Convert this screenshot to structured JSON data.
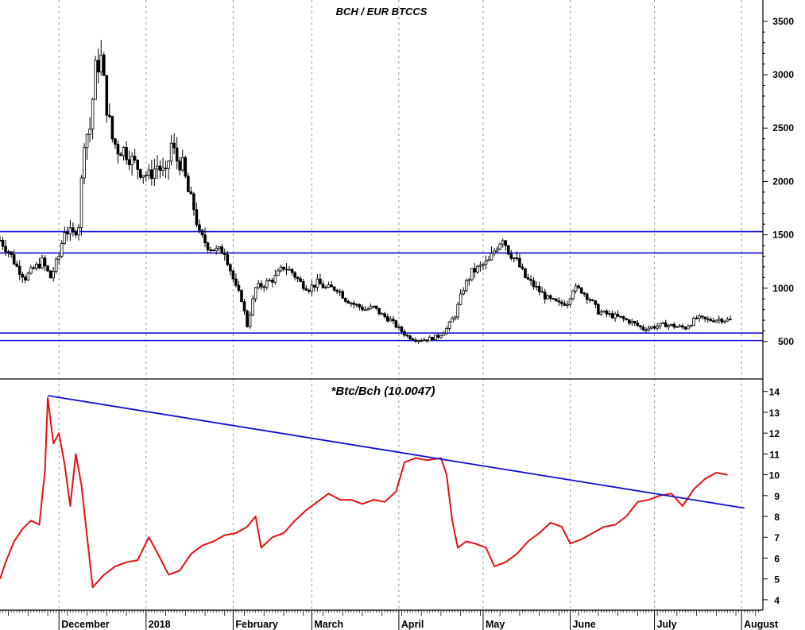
{
  "chart_data": [
    {
      "type": "candlestick",
      "title": "BCH / EUR BTCCS",
      "ylim": [
        150,
        3700
      ],
      "y_ticks": [
        500,
        1000,
        1500,
        2000,
        2500,
        3000,
        3500
      ],
      "x_start": "2017-11-10",
      "x_end": "2018-07-28",
      "x_labels": [
        {
          "date": "2017-12-01",
          "label": "December"
        },
        {
          "date": "2018-01-01",
          "label": "2018"
        },
        {
          "date": "2018-02-01",
          "label": "February"
        },
        {
          "date": "2018-03-01",
          "label": "March"
        },
        {
          "date": "2018-04-01",
          "label": "April"
        },
        {
          "date": "2018-05-01",
          "label": "May"
        },
        {
          "date": "2018-06-01",
          "label": "June"
        },
        {
          "date": "2018-07-01",
          "label": "July"
        },
        {
          "date": "2018-08-01",
          "label": "August"
        }
      ],
      "horizontal_lines": [
        1530,
        1330,
        580,
        510
      ],
      "close_path": [
        [
          "2017-11-10",
          1450
        ],
        [
          "2017-11-13",
          1350
        ],
        [
          "2017-11-16",
          1200
        ],
        [
          "2017-11-19",
          1100
        ],
        [
          "2017-11-22",
          1180
        ],
        [
          "2017-11-25",
          1250
        ],
        [
          "2017-11-28",
          1100
        ],
        [
          "2017-12-01",
          1300
        ],
        [
          "2017-12-03",
          1550
        ],
        [
          "2017-12-06",
          1500
        ],
        [
          "2017-12-08",
          1600
        ],
        [
          "2017-12-10",
          2400
        ],
        [
          "2017-12-12",
          2500
        ],
        [
          "2017-12-14",
          3050
        ],
        [
          "2017-12-16",
          3150
        ],
        [
          "2017-12-18",
          2700
        ],
        [
          "2017-12-20",
          2400
        ],
        [
          "2017-12-22",
          2300
        ],
        [
          "2017-12-24",
          2300
        ],
        [
          "2017-12-27",
          2200
        ],
        [
          "2017-12-30",
          2100
        ],
        [
          "2018-01-02",
          2050
        ],
        [
          "2018-01-05",
          2150
        ],
        [
          "2018-01-08",
          2050
        ],
        [
          "2018-01-10",
          2350
        ],
        [
          "2018-01-12",
          2200
        ],
        [
          "2018-01-14",
          2150
        ],
        [
          "2018-01-16",
          1900
        ],
        [
          "2018-01-18",
          1750
        ],
        [
          "2018-01-20",
          1500
        ],
        [
          "2018-01-23",
          1400
        ],
        [
          "2018-01-26",
          1350
        ],
        [
          "2018-01-29",
          1350
        ],
        [
          "2018-02-02",
          1000
        ],
        [
          "2018-02-04",
          900
        ],
        [
          "2018-02-06",
          650
        ],
        [
          "2018-02-09",
          1000
        ],
        [
          "2018-02-13",
          1050
        ],
        [
          "2018-02-16",
          1100
        ],
        [
          "2018-02-19",
          1200
        ],
        [
          "2018-02-22",
          1150
        ],
        [
          "2018-02-25",
          1050
        ],
        [
          "2018-02-28",
          1000
        ],
        [
          "2018-03-03",
          1050
        ],
        [
          "2018-03-06",
          1000
        ],
        [
          "2018-03-10",
          1000
        ],
        [
          "2018-03-13",
          900
        ],
        [
          "2018-03-16",
          850
        ],
        [
          "2018-03-20",
          800
        ],
        [
          "2018-03-23",
          820
        ],
        [
          "2018-03-26",
          750
        ],
        [
          "2018-03-29",
          700
        ],
        [
          "2018-04-01",
          620
        ],
        [
          "2018-04-04",
          550
        ],
        [
          "2018-04-07",
          520
        ],
        [
          "2018-04-11",
          520
        ],
        [
          "2018-04-15",
          550
        ],
        [
          "2018-04-18",
          620
        ],
        [
          "2018-04-21",
          750
        ],
        [
          "2018-04-24",
          1000
        ],
        [
          "2018-04-27",
          1150
        ],
        [
          "2018-04-30",
          1200
        ],
        [
          "2018-05-03",
          1250
        ],
        [
          "2018-05-06",
          1400
        ],
        [
          "2018-05-08",
          1480
        ],
        [
          "2018-05-10",
          1350
        ],
        [
          "2018-05-13",
          1250
        ],
        [
          "2018-05-16",
          1100
        ],
        [
          "2018-05-20",
          1000
        ],
        [
          "2018-05-24",
          900
        ],
        [
          "2018-05-28",
          850
        ],
        [
          "2018-05-31",
          870
        ],
        [
          "2018-06-02",
          1000
        ],
        [
          "2018-06-05",
          980
        ],
        [
          "2018-06-08",
          900
        ],
        [
          "2018-06-11",
          780
        ],
        [
          "2018-06-15",
          750
        ],
        [
          "2018-06-19",
          720
        ],
        [
          "2018-06-23",
          680
        ],
        [
          "2018-06-27",
          620
        ],
        [
          "2018-07-01",
          640
        ],
        [
          "2018-07-05",
          660
        ],
        [
          "2018-07-09",
          640
        ],
        [
          "2018-07-12",
          630
        ],
        [
          "2018-07-16",
          720
        ],
        [
          "2018-07-20",
          700
        ],
        [
          "2018-07-24",
          710
        ],
        [
          "2018-07-28",
          700
        ]
      ]
    },
    {
      "type": "line",
      "title": "*Btc/Bch (10.0047)",
      "ylim": [
        3.5,
        14.6
      ],
      "y_ticks": [
        4,
        5,
        6,
        7,
        8,
        9,
        10,
        11,
        12,
        13,
        14
      ],
      "series": [
        {
          "color": "#e81010",
          "points": [
            [
              "2017-11-10",
              5.0
            ],
            [
              "2017-11-12",
              5.8
            ],
            [
              "2017-11-15",
              6.8
            ],
            [
              "2017-11-18",
              7.4
            ],
            [
              "2017-11-21",
              7.8
            ],
            [
              "2017-11-24",
              7.6
            ],
            [
              "2017-11-26",
              10.2
            ],
            [
              "2017-11-27",
              13.7
            ],
            [
              "2017-11-29",
              11.5
            ],
            [
              "2017-12-01",
              12.0
            ],
            [
              "2017-12-03",
              10.5
            ],
            [
              "2017-12-05",
              8.5
            ],
            [
              "2017-12-07",
              11.0
            ],
            [
              "2017-12-09",
              9.5
            ],
            [
              "2017-12-13",
              4.6
            ],
            [
              "2017-12-17",
              5.2
            ],
            [
              "2017-12-21",
              5.6
            ],
            [
              "2017-12-25",
              5.8
            ],
            [
              "2017-12-29",
              5.9
            ],
            [
              "2018-01-02",
              7.0
            ],
            [
              "2018-01-06",
              6.0
            ],
            [
              "2018-01-09",
              5.2
            ],
            [
              "2018-01-13",
              5.4
            ],
            [
              "2018-01-17",
              6.2
            ],
            [
              "2018-01-21",
              6.6
            ],
            [
              "2018-01-25",
              6.8
            ],
            [
              "2018-01-29",
              7.1
            ],
            [
              "2018-02-02",
              7.2
            ],
            [
              "2018-02-06",
              7.5
            ],
            [
              "2018-02-09",
              8.0
            ],
            [
              "2018-02-11",
              6.5
            ],
            [
              "2018-02-15",
              7.0
            ],
            [
              "2018-02-19",
              7.2
            ],
            [
              "2018-02-23",
              7.8
            ],
            [
              "2018-02-27",
              8.3
            ],
            [
              "2018-03-03",
              8.7
            ],
            [
              "2018-03-07",
              9.1
            ],
            [
              "2018-03-11",
              8.8
            ],
            [
              "2018-03-15",
              8.8
            ],
            [
              "2018-03-19",
              8.6
            ],
            [
              "2018-03-23",
              8.8
            ],
            [
              "2018-03-27",
              8.7
            ],
            [
              "2018-03-31",
              9.2
            ],
            [
              "2018-04-03",
              10.6
            ],
            [
              "2018-04-07",
              10.8
            ],
            [
              "2018-04-11",
              10.7
            ],
            [
              "2018-04-16",
              10.8
            ],
            [
              "2018-04-18",
              10.0
            ],
            [
              "2018-04-20",
              7.8
            ],
            [
              "2018-04-22",
              6.5
            ],
            [
              "2018-04-25",
              6.8
            ],
            [
              "2018-04-28",
              6.7
            ],
            [
              "2018-05-02",
              6.5
            ],
            [
              "2018-05-05",
              5.6
            ],
            [
              "2018-05-09",
              5.8
            ],
            [
              "2018-05-13",
              6.2
            ],
            [
              "2018-05-17",
              6.8
            ],
            [
              "2018-05-21",
              7.2
            ],
            [
              "2018-05-25",
              7.7
            ],
            [
              "2018-05-29",
              7.5
            ],
            [
              "2018-06-01",
              6.7
            ],
            [
              "2018-06-05",
              6.9
            ],
            [
              "2018-06-09",
              7.2
            ],
            [
              "2018-06-13",
              7.5
            ],
            [
              "2018-06-17",
              7.6
            ],
            [
              "2018-06-21",
              8.0
            ],
            [
              "2018-06-25",
              8.7
            ],
            [
              "2018-06-29",
              8.8
            ],
            [
              "2018-07-03",
              9.0
            ],
            [
              "2018-07-07",
              9.1
            ],
            [
              "2018-07-11",
              8.5
            ],
            [
              "2018-07-15",
              9.3
            ],
            [
              "2018-07-19",
              9.8
            ],
            [
              "2018-07-23",
              10.1
            ],
            [
              "2018-07-27",
              10.0
            ]
          ]
        }
      ],
      "trendline": {
        "color": "#1010d0",
        "from": [
          "2017-11-27",
          13.8
        ],
        "to": [
          "2018-08-02",
          8.4
        ]
      }
    }
  ]
}
